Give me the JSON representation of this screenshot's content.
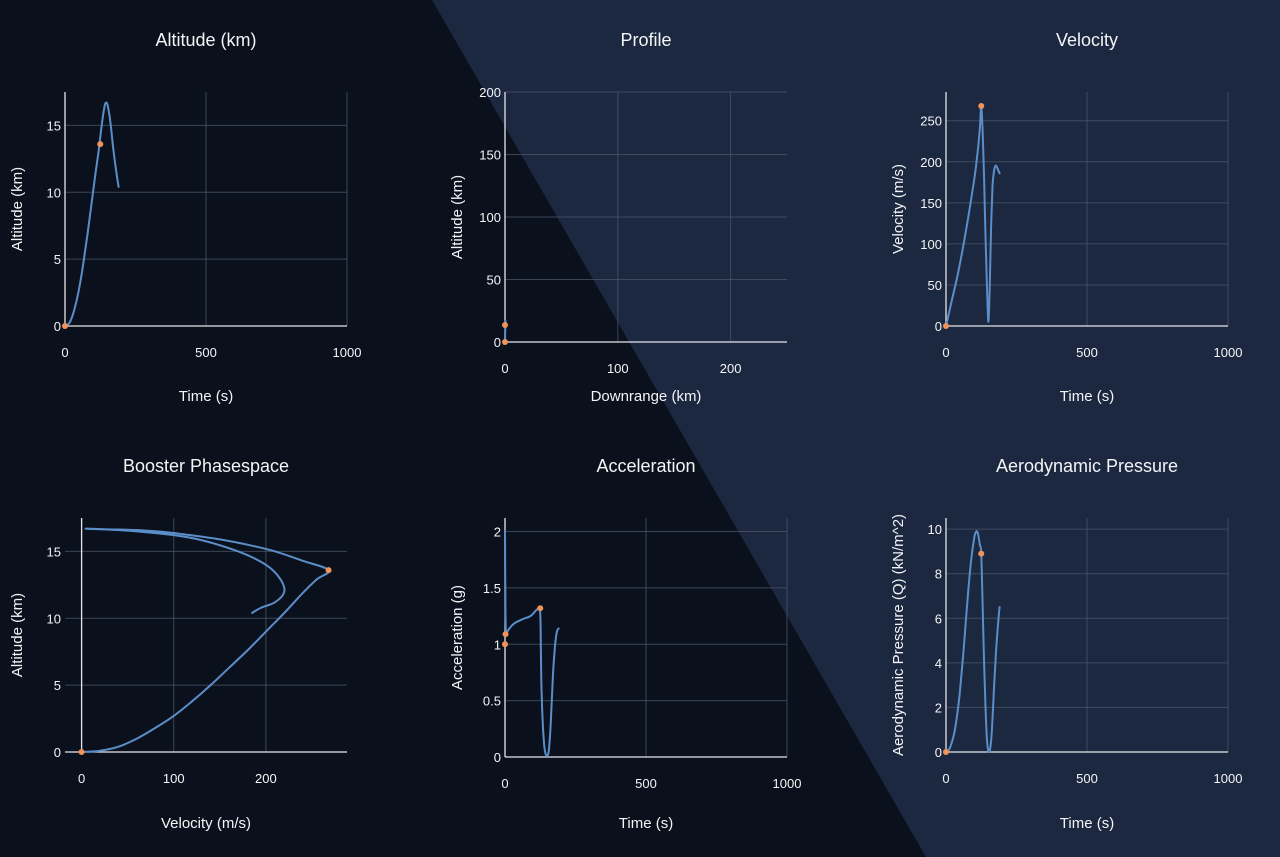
{
  "colors": {
    "background_dark": "#0b111c",
    "background_light": "#1b2840",
    "series": "#5b8ec9",
    "marker": "#f0935a"
  },
  "chart_data": [
    {
      "id": "altitude",
      "type": "line",
      "title": "Altitude (km)",
      "xlabel": "Time (s)",
      "ylabel": "Altitude (km)",
      "xlim": [
        0,
        1000
      ],
      "ylim": [
        0,
        17.5
      ],
      "xticks": [
        0,
        500,
        1000
      ],
      "yticks": [
        0,
        5,
        10,
        15
      ],
      "series": [
        {
          "x": [
            0,
            10,
            20,
            30,
            40,
            50,
            60,
            70,
            80,
            90,
            100,
            110,
            120,
            130,
            140,
            145,
            150,
            155,
            160,
            165,
            170,
            180,
            190
          ],
          "y": [
            0,
            0.1,
            0.4,
            1.0,
            1.8,
            2.8,
            4.0,
            5.4,
            6.9,
            8.5,
            10.1,
            11.7,
            13.2,
            15.0,
            16.4,
            16.7,
            16.6,
            16.1,
            15.4,
            14.5,
            13.5,
            11.8,
            10.4
          ]
        }
      ],
      "markers": [
        {
          "x": 0,
          "y": 0
        },
        {
          "x": 125,
          "y": 13.6
        }
      ]
    },
    {
      "id": "profile",
      "type": "line",
      "title": "Profile",
      "xlabel": "Downrange (km)",
      "ylabel": "Altitude (km)",
      "xlim": [
        0,
        250
      ],
      "ylim": [
        0,
        200
      ],
      "xticks": [
        0,
        100,
        200
      ],
      "yticks": [
        0,
        50,
        100,
        150,
        200
      ],
      "series": [
        {
          "x": [
            0,
            0.1,
            0.3,
            0.4,
            0.3
          ],
          "y": [
            0,
            5,
            13.6,
            16.7,
            10.4
          ]
        }
      ],
      "markers": [
        {
          "x": 0,
          "y": 13.6
        },
        {
          "x": 0,
          "y": 0
        }
      ]
    },
    {
      "id": "velocity",
      "type": "line",
      "title": "Velocity",
      "xlabel": "Time (s)",
      "ylabel": "Velocity (m/s)",
      "xlim": [
        0,
        1000
      ],
      "ylim": [
        0,
        285
      ],
      "xticks": [
        0,
        500,
        1000
      ],
      "yticks": [
        0,
        50,
        100,
        150,
        200,
        250
      ],
      "series": [
        {
          "x": [
            0,
            10,
            20,
            40,
            60,
            80,
            100,
            110,
            120,
            125,
            130,
            135,
            140,
            145,
            148,
            150,
            153,
            156,
            160,
            165,
            170,
            175,
            180,
            185,
            190
          ],
          "y": [
            0,
            15,
            30,
            60,
            95,
            135,
            178,
            205,
            240,
            268,
            235,
            180,
            110,
            50,
            20,
            5,
            20,
            60,
            120,
            170,
            188,
            195,
            194,
            190,
            186
          ]
        }
      ],
      "markers": [
        {
          "x": 0,
          "y": 0
        },
        {
          "x": 125,
          "y": 268
        }
      ]
    },
    {
      "id": "phasespace",
      "type": "line",
      "title": "Booster Phasespace",
      "xlabel": "Velocity (m/s)",
      "ylabel": "Altitude (km)",
      "xlim": [
        -18,
        288
      ],
      "ylim": [
        0,
        17.5
      ],
      "xticks": [
        0,
        100,
        200
      ],
      "yticks": [
        0,
        5,
        10,
        15
      ],
      "series": [
        {
          "x": [
            0,
            20,
            40,
            60,
            80,
            100,
            120,
            140,
            160,
            180,
            200,
            220,
            240,
            255,
            268,
            240,
            210,
            180,
            150,
            120,
            90,
            60,
            30,
            5,
            60,
            120,
            170,
            200,
            215,
            220,
            210,
            195,
            185
          ],
          "y": [
            0,
            0.1,
            0.4,
            1.0,
            1.8,
            2.7,
            3.8,
            5.0,
            6.3,
            7.6,
            9.0,
            10.4,
            11.9,
            12.9,
            13.6,
            14.3,
            15.0,
            15.5,
            15.9,
            16.2,
            16.45,
            16.6,
            16.65,
            16.7,
            16.5,
            16.0,
            15.0,
            14.0,
            13.0,
            12.0,
            11.2,
            10.8,
            10.4
          ]
        }
      ],
      "markers": [
        {
          "x": 0,
          "y": 0
        },
        {
          "x": 268,
          "y": 13.6
        }
      ]
    },
    {
      "id": "acceleration",
      "type": "line",
      "title": "Acceleration",
      "xlabel": "Time (s)",
      "ylabel": "Acceleration (g)",
      "xlim": [
        0,
        1000
      ],
      "ylim": [
        0,
        2.12
      ],
      "xticks": [
        0,
        500,
        1000
      ],
      "yticks": [
        0,
        0.5,
        1,
        1.5,
        2
      ],
      "series": [
        {
          "x": [
            0,
            1,
            2,
            4,
            10,
            30,
            60,
            90,
            110,
            120,
            124,
            126,
            127,
            128,
            130,
            133,
            136,
            140,
            145,
            150,
            155,
            160,
            165,
            170,
            175,
            180,
            185,
            190
          ],
          "y": [
            2.0,
            1.5,
            1.2,
            1.1,
            1.12,
            1.18,
            1.22,
            1.25,
            1.3,
            1.32,
            1.3,
            1.2,
            1.0,
            0.8,
            0.55,
            0.35,
            0.2,
            0.08,
            0.02,
            0.01,
            0.05,
            0.2,
            0.45,
            0.72,
            0.92,
            1.05,
            1.12,
            1.14
          ]
        }
      ],
      "markers": [
        {
          "x": 0,
          "y": 1.0
        },
        {
          "x": 2,
          "y": 1.09
        },
        {
          "x": 125,
          "y": 1.32
        }
      ]
    },
    {
      "id": "aeropressure",
      "type": "line",
      "title": "Aerodynamic Pressure",
      "xlabel": "Time (s)",
      "ylabel": "Aerodynamic Pressure (Q) (kN/m^2)",
      "xlim": [
        0,
        1000
      ],
      "ylim": [
        0,
        10.5
      ],
      "xticks": [
        0,
        500,
        1000
      ],
      "yticks": [
        0,
        2,
        4,
        6,
        8,
        10
      ],
      "series": [
        {
          "x": [
            0,
            10,
            20,
            30,
            40,
            50,
            60,
            70,
            80,
            90,
            100,
            105,
            110,
            115,
            120,
            125,
            130,
            135,
            140,
            145,
            150,
            155,
            160,
            165,
            170,
            175,
            180,
            185,
            190
          ],
          "y": [
            0,
            0.1,
            0.4,
            0.9,
            1.7,
            2.8,
            4.2,
            5.8,
            7.4,
            8.7,
            9.6,
            9.85,
            9.9,
            9.7,
            9.3,
            8.9,
            6.5,
            4.0,
            2.0,
            0.6,
            0.05,
            0.05,
            0.5,
            1.5,
            2.8,
            4.0,
            5.0,
            5.8,
            6.5
          ]
        }
      ],
      "markers": [
        {
          "x": 0,
          "y": 0
        },
        {
          "x": 125,
          "y": 8.9
        }
      ]
    }
  ]
}
